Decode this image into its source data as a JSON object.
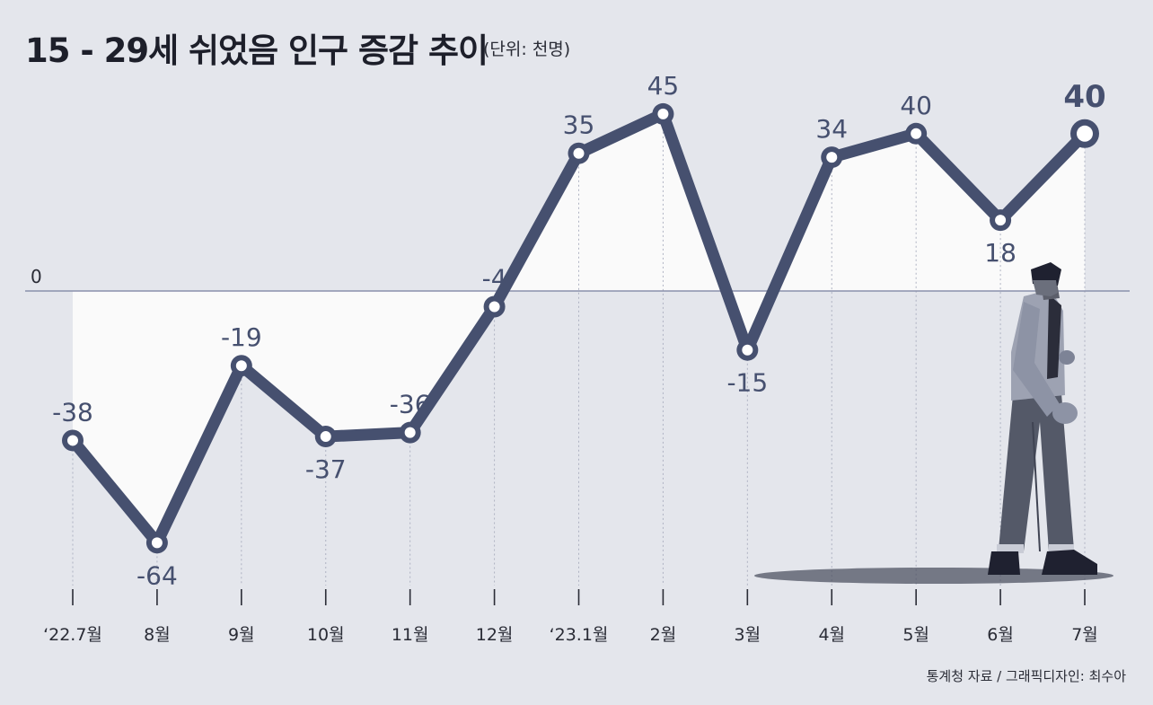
{
  "title": "15 - 29세 쉬었음 인구 증감 추이",
  "unit": "(단위: 천명)",
  "source": "통계청 자료 / 그래픽디자인: 최수아",
  "colors": {
    "background": "#e4e6ec",
    "line": "#46506f",
    "fill": "#fafafa",
    "marker_inner": "#ffffff",
    "label": "#46506f",
    "baseline": "#8a90ab"
  },
  "illustration": "person-standing-illustration",
  "chart_data": {
    "type": "line",
    "title": "15 - 29세 쉬었음 인구 증감 추이",
    "unit": "(단위: 천명)",
    "baseline_label": "0",
    "categories": [
      "‘22.7월",
      "8월",
      "9월",
      "10월",
      "11월",
      "12월",
      "‘23.1월",
      "2월",
      "3월",
      "4월",
      "5월",
      "6월",
      "7월"
    ],
    "series": [
      {
        "values": [
          -38,
          -64,
          -19,
          -37,
          -36,
          -4,
          35,
          45,
          -15,
          34,
          40,
          18,
          40
        ]
      }
    ],
    "data_labels": [
      "-38",
      "-64",
      "-19",
      "-37",
      "-36",
      "-4",
      "35",
      "45",
      "-15",
      "34",
      "40",
      "18",
      "40"
    ],
    "highlight_last": true,
    "grid": false,
    "legend": "none"
  }
}
